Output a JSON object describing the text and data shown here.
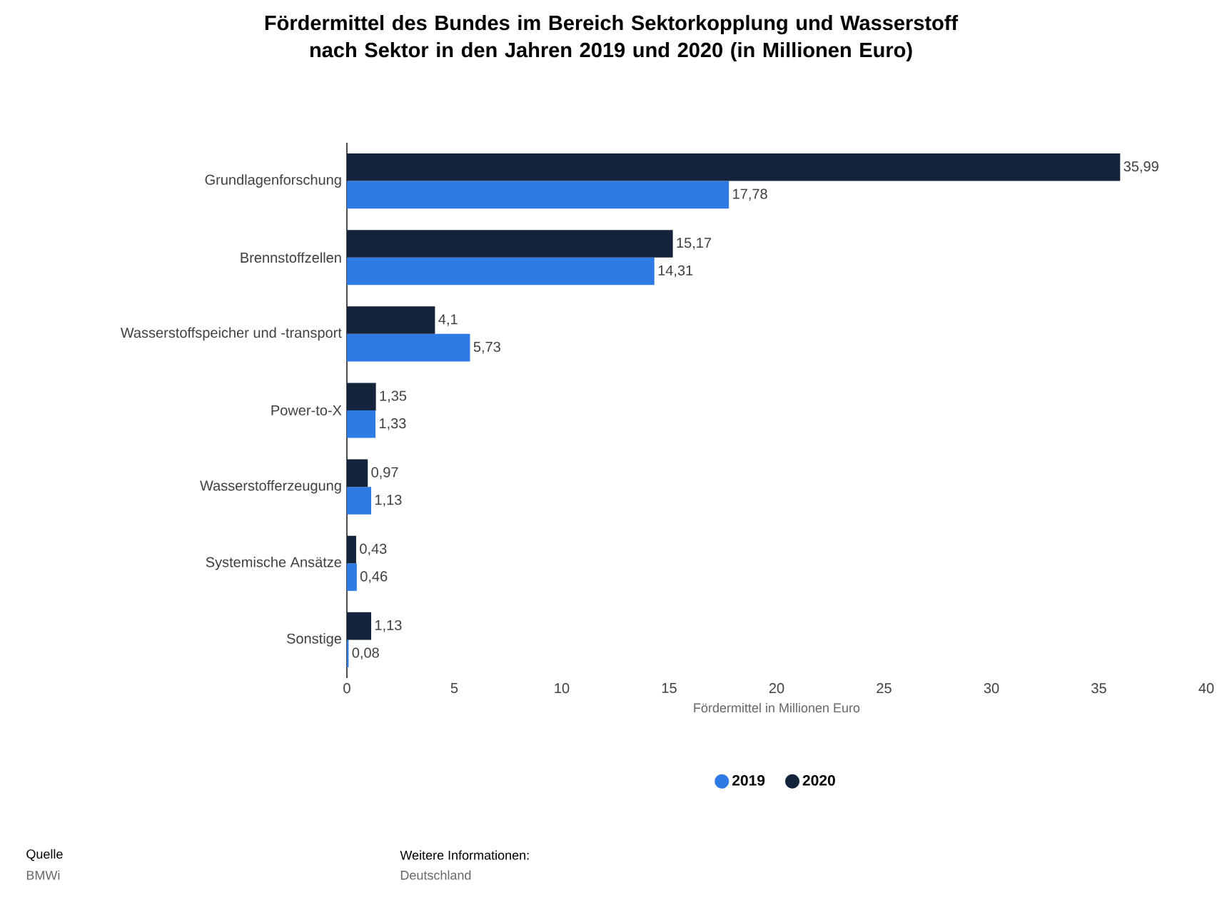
{
  "chart_data": {
    "type": "bar",
    "orientation": "horizontal",
    "title": "Fördermittel des Bundes im Bereich Sektorkopplung und Wasserstoff nach Sektor in den Jahren 2019 und 2020 (in Millionen Euro)",
    "xlabel": "Fördermittel in Millionen Euro",
    "categories": [
      "Grundlagenforschung",
      "Brennstoffzellen",
      "Wasserstoffspeicher und -transport",
      "Power-to-X",
      "Wasserstofferzeugung",
      "Systemische Ansätze",
      "Sonstige"
    ],
    "series": [
      {
        "name": "2019",
        "color": "#2f7be6",
        "values": [
          17.78,
          14.31,
          5.73,
          1.33,
          1.13,
          0.46,
          0.08
        ],
        "value_labels": [
          "17,78",
          "14,31",
          "5,73",
          "1,33",
          "1,13",
          "0,46",
          "0,08"
        ]
      },
      {
        "name": "2020",
        "color": "#14243c",
        "values": [
          35.99,
          15.17,
          4.1,
          1.35,
          0.97,
          0.43,
          1.13
        ],
        "value_labels": [
          "35,99",
          "15,17",
          "4,1",
          "1,35",
          "0,97",
          "0,43",
          "1,13"
        ]
      }
    ],
    "xlim": [
      0,
      40
    ],
    "xticks": [
      0,
      5,
      10,
      15,
      20,
      25,
      30,
      35,
      40
    ],
    "legend": "bottom",
    "annotations": [
      "Quelle",
      "BMWi",
      "Weitere Informationen:",
      "Deutschland"
    ]
  }
}
